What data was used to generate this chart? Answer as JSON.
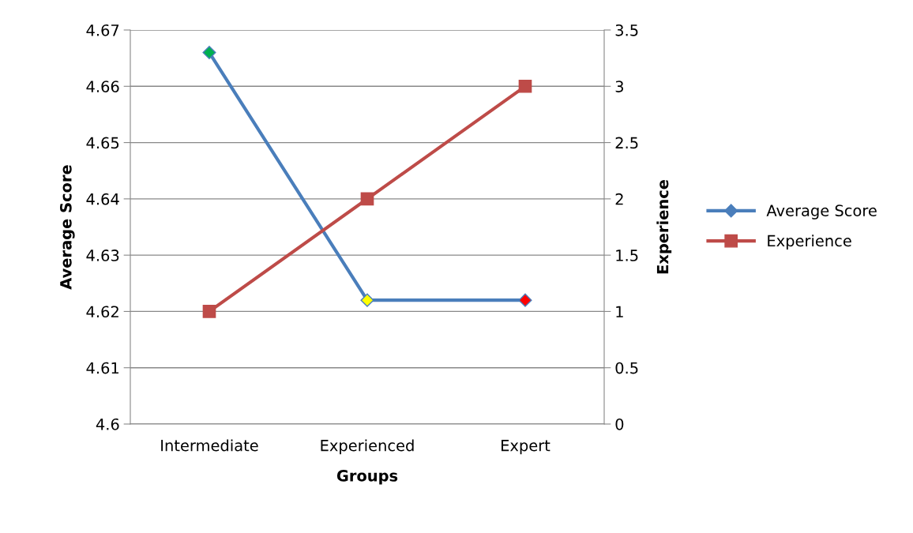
{
  "chart_data": {
    "type": "line",
    "xlabel": "Groups",
    "ylabel": "Average Score",
    "y2label": "Experience",
    "categories": [
      "Intermediate",
      "Experienced",
      "Expert"
    ],
    "series": [
      {
        "name": "Average Score",
        "color": "#4a7ebb",
        "colors": [
          "#00b050",
          "#ffff00",
          "#ff0000"
        ],
        "marker": "diamond",
        "values": [
          4.666,
          4.622,
          4.622
        ]
      },
      {
        "name": "Experience",
        "color": "#be4b48",
        "marker": "square",
        "axis": "y2",
        "values": [
          1,
          2,
          3
        ]
      }
    ],
    "ylim": [
      4.6,
      4.67
    ],
    "yticks": [
      4.6,
      4.61,
      4.62,
      4.63,
      4.64,
      4.65,
      4.66,
      4.67
    ],
    "y2lim": [
      0,
      3.5
    ],
    "y2ticks": [
      0,
      0.5,
      1,
      1.5,
      2,
      2.5,
      3,
      3.5
    ],
    "grid": "y",
    "legend": "right",
    "line_style": "solid"
  }
}
